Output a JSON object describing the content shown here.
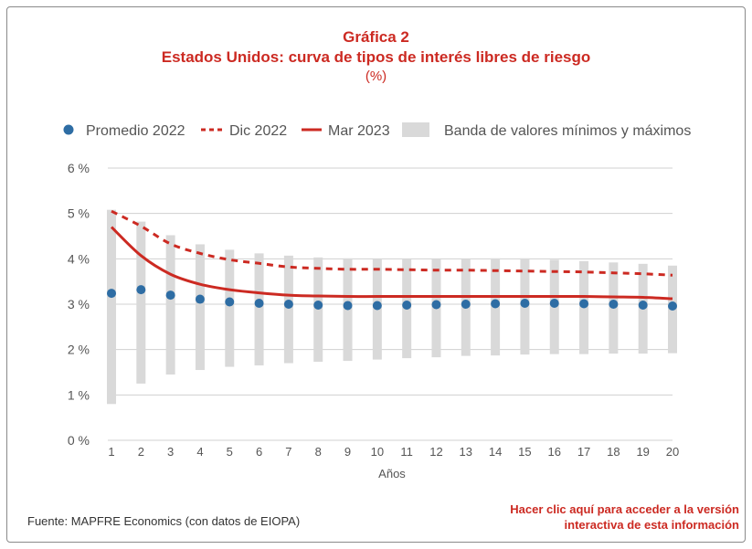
{
  "header": {
    "title": "Gráfica 2",
    "subtitle": "Estados Unidos: curva de tipos de interés libres de riesgo",
    "unit": "(%)"
  },
  "footer": {
    "source": "Fuente: MAPFRE Economics (con datos de EIOPA)",
    "link_line1": "Hacer clic aquí para acceder a la versión",
    "link_line2": "interactiva de esta información"
  },
  "colors": {
    "accent": "#cc2a22",
    "dot": "#2e6da4",
    "band": "#d9d9d9",
    "grid": "#d0d0d0",
    "axis_text": "#555555"
  },
  "chart_data": {
    "type": "line",
    "xlabel": "Años",
    "ylabel": "",
    "x": [
      1,
      2,
      3,
      4,
      5,
      6,
      7,
      8,
      9,
      10,
      11,
      12,
      13,
      14,
      15,
      16,
      17,
      18,
      19,
      20
    ],
    "ylim": [
      0,
      6
    ],
    "y_ticks": [
      0,
      1,
      2,
      3,
      4,
      5,
      6
    ],
    "y_tick_labels": [
      "0 %",
      "1 %",
      "2 %",
      "3 %",
      "4 %",
      "5 %",
      "6 %"
    ],
    "grid": true,
    "legend_position": "top",
    "legend": [
      {
        "name": "Promedio 2022",
        "kind": "dot"
      },
      {
        "name": "Dic 2022",
        "kind": "dashed"
      },
      {
        "name": "Mar 2023",
        "kind": "solid"
      },
      {
        "name": "Banda de valores mínimos y máximos",
        "kind": "band"
      }
    ],
    "series": [
      {
        "name": "Promedio 2022",
        "style": "dot",
        "values": [
          3.24,
          3.32,
          3.2,
          3.11,
          3.05,
          3.02,
          3.0,
          2.98,
          2.97,
          2.97,
          2.98,
          2.99,
          3.0,
          3.01,
          3.02,
          3.02,
          3.01,
          3.0,
          2.98,
          2.96
        ]
      },
      {
        "name": "Dic 2022",
        "style": "dashed",
        "values": [
          5.05,
          4.72,
          4.33,
          4.12,
          3.98,
          3.9,
          3.82,
          3.79,
          3.77,
          3.77,
          3.76,
          3.75,
          3.75,
          3.74,
          3.73,
          3.72,
          3.71,
          3.69,
          3.67,
          3.64
        ]
      },
      {
        "name": "Mar 2023",
        "style": "solid",
        "values": [
          4.7,
          4.07,
          3.66,
          3.44,
          3.32,
          3.25,
          3.2,
          3.18,
          3.17,
          3.17,
          3.17,
          3.17,
          3.17,
          3.17,
          3.17,
          3.17,
          3.17,
          3.16,
          3.15,
          3.12
        ]
      }
    ],
    "band": {
      "name": "Banda de valores mínimos y máximos",
      "min": [
        0.8,
        1.25,
        1.45,
        1.55,
        1.62,
        1.65,
        1.7,
        1.73,
        1.75,
        1.78,
        1.81,
        1.83,
        1.86,
        1.87,
        1.89,
        1.9,
        1.9,
        1.91,
        1.91,
        1.92
      ],
      "max": [
        5.08,
        4.82,
        4.52,
        4.32,
        4.2,
        4.12,
        4.07,
        4.03,
        4.01,
        4.0,
        3.99,
        3.99,
        4.0,
        4.01,
        4.01,
        3.98,
        3.95,
        3.92,
        3.89,
        3.85
      ]
    }
  }
}
